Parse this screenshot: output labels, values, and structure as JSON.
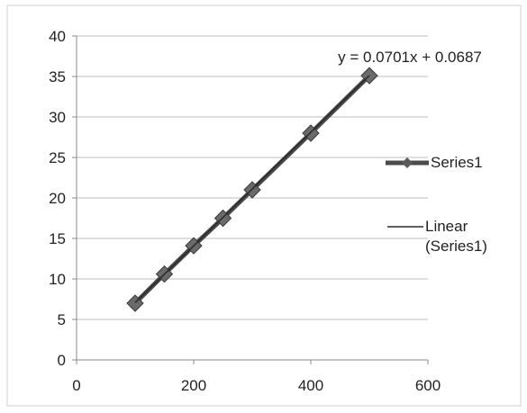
{
  "chart_data": {
    "type": "scatter",
    "title": "",
    "xlabel": "",
    "ylabel": "",
    "xlim": [
      0,
      600
    ],
    "ylim": [
      0,
      40
    ],
    "x_ticks": [
      "0",
      "200",
      "400",
      "600"
    ],
    "y_ticks": [
      "0",
      "5",
      "10",
      "15",
      "20",
      "25",
      "30",
      "35",
      "40"
    ],
    "grid": "horizontal",
    "legend_position": "right",
    "series": [
      {
        "name": "Series1",
        "marker": "diamond",
        "color": "#4a4a4a",
        "x": [
          100,
          150,
          200,
          250,
          300,
          400,
          500
        ],
        "y": [
          7.0,
          10.6,
          14.1,
          17.5,
          21.0,
          28.0,
          35.1
        ]
      }
    ],
    "trendline": {
      "name": "Linear (Series1)",
      "type": "linear",
      "equation": "y = 0.0701x + 0.0687",
      "slope": 0.0701,
      "intercept": 0.0687,
      "color": "#2a2a2a"
    }
  }
}
